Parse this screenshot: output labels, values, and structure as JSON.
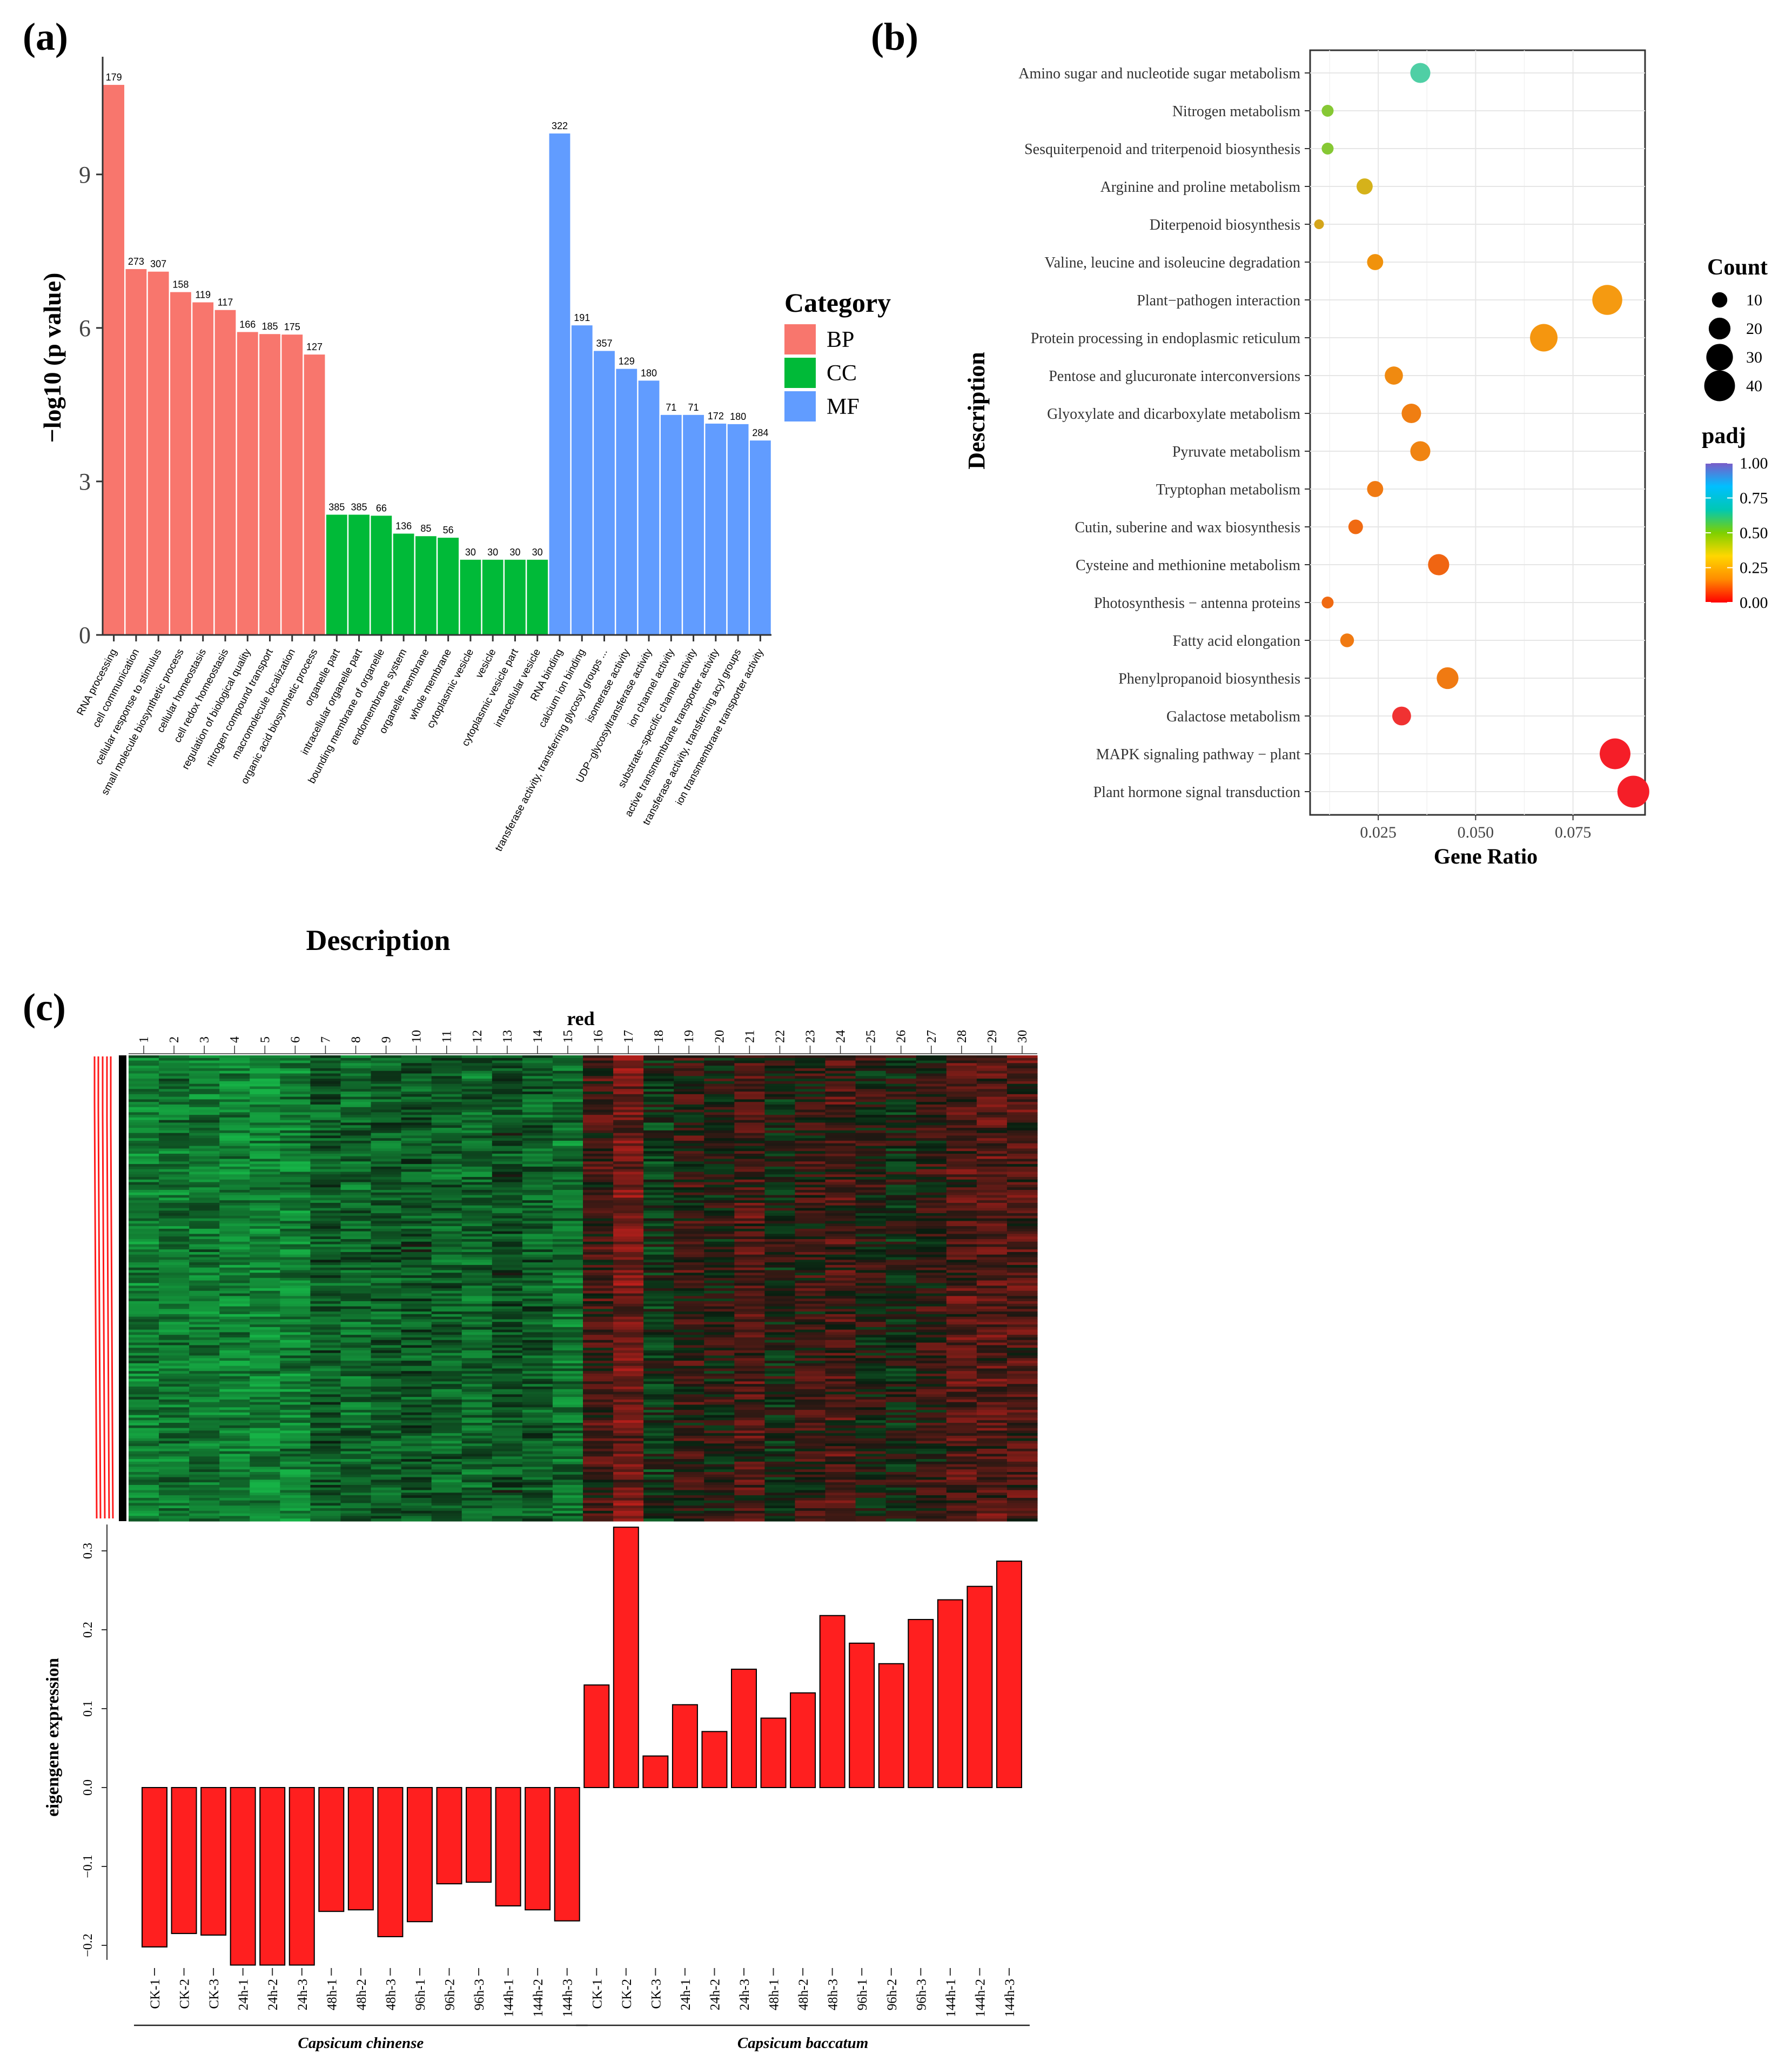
{
  "panel_labels": {
    "a": "(a)",
    "b": "(b)",
    "c": "(c)"
  },
  "chart_data": [
    {
      "panel": "a",
      "type": "bar",
      "xlabel": "Description",
      "ylabel": "−log10 (p value)",
      "ylim": [
        0,
        11.3
      ],
      "yticks": [
        0,
        3,
        6,
        9
      ],
      "legend": {
        "title": "Category",
        "placement": "right",
        "entries": [
          {
            "name": "BP",
            "color": "#F8766D"
          },
          {
            "name": "CC",
            "color": "#00BA38"
          },
          {
            "name": "MF",
            "color": "#619CFF"
          }
        ]
      },
      "bars": [
        {
          "label": "RNA processing",
          "value": 10.75,
          "count": "179",
          "cat": "BP"
        },
        {
          "label": "cell communication",
          "value": 7.15,
          "count": "273",
          "cat": "BP"
        },
        {
          "label": "cellular response to stimulus",
          "value": 7.1,
          "count": "307",
          "cat": "BP"
        },
        {
          "label": "small molecule biosynthetic process",
          "value": 6.7,
          "count": "158",
          "cat": "BP"
        },
        {
          "label": "cellular homeostasis",
          "value": 6.5,
          "count": "119",
          "cat": "BP"
        },
        {
          "label": "cell redox homeostasis",
          "value": 6.35,
          "count": "117",
          "cat": "BP"
        },
        {
          "label": "regulation of biological quality",
          "value": 5.92,
          "count": "166",
          "cat": "BP"
        },
        {
          "label": "nitrogen compound transport",
          "value": 5.88,
          "count": "185",
          "cat": "BP"
        },
        {
          "label": "macromolecule localization",
          "value": 5.87,
          "count": "175",
          "cat": "BP"
        },
        {
          "label": "organic acid biosynthetic process",
          "value": 5.48,
          "count": "127",
          "cat": "BP"
        },
        {
          "label": "organelle part",
          "value": 2.35,
          "count": "385",
          "cat": "CC"
        },
        {
          "label": "intracellular organelle part",
          "value": 2.35,
          "count": "385",
          "cat": "CC"
        },
        {
          "label": "bounding membrane of organelle",
          "value": 2.33,
          "count": "66",
          "cat": "CC"
        },
        {
          "label": "endomembrane system",
          "value": 1.98,
          "count": "136",
          "cat": "CC"
        },
        {
          "label": "organelle membrane",
          "value": 1.93,
          "count": "85",
          "cat": "CC"
        },
        {
          "label": "whole membrane",
          "value": 1.9,
          "count": "56",
          "cat": "CC"
        },
        {
          "label": "cytoplasmic vesicle",
          "value": 1.47,
          "count": "30",
          "cat": "CC"
        },
        {
          "label": "vesicle",
          "value": 1.47,
          "count": "30",
          "cat": "CC"
        },
        {
          "label": "cytoplasmic vesicle part",
          "value": 1.47,
          "count": "30",
          "cat": "CC"
        },
        {
          "label": "intracellular vesicle",
          "value": 1.47,
          "count": "30",
          "cat": "CC"
        },
        {
          "label": "RNA binding",
          "value": 9.8,
          "count": "322",
          "cat": "MF"
        },
        {
          "label": "calcium ion binding",
          "value": 6.05,
          "count": "191",
          "cat": "MF"
        },
        {
          "label": "transferase activity, transferring glycosyl groups ...",
          "value": 5.55,
          "count": "357",
          "cat": "MF"
        },
        {
          "label": "isomerase activity",
          "value": 5.2,
          "count": "129",
          "cat": "MF"
        },
        {
          "label": "UDP−glycosyltransferase activity",
          "value": 4.97,
          "count": "180",
          "cat": "MF"
        },
        {
          "label": "ion channel activity",
          "value": 4.3,
          "count": "71",
          "cat": "MF"
        },
        {
          "label": "substrate−specific channel activity",
          "value": 4.3,
          "count": "71",
          "cat": "MF"
        },
        {
          "label": "active transmembrane transporter activity",
          "value": 4.13,
          "count": "172",
          "cat": "MF"
        },
        {
          "label": "transferase activity, transferring acyl groups",
          "value": 4.12,
          "count": "180",
          "cat": "MF"
        },
        {
          "label": "ion transmembrane transporter activity",
          "value": 3.8,
          "count": "284",
          "cat": "MF"
        }
      ]
    },
    {
      "panel": "b",
      "type": "scatter",
      "xlabel": "Gene Ratio",
      "ylabel": "Description",
      "xlim": [
        0.0075,
        0.0935
      ],
      "xticks": [
        0.025,
        0.05,
        0.075
      ],
      "xtick_labels": [
        "0.025",
        "0.050",
        "0.075"
      ],
      "grid": true,
      "size_legend": {
        "title": "Count",
        "values": [
          10,
          20,
          30,
          40
        ],
        "labels": [
          "10",
          "20",
          "30",
          "40"
        ]
      },
      "color_legend": {
        "title": "padj",
        "range": [
          0,
          1
        ],
        "ticks": [
          0,
          0.25,
          0.5,
          0.75,
          1
        ],
        "tick_labels": [
          "0.00",
          "0.25",
          "0.50",
          "0.75",
          "1.00"
        ],
        "colors": [
          "#FF0000",
          "#FF8C00",
          "#FFD700",
          "#7FD000",
          "#00C8B4",
          "#00BFFF",
          "#7A5CC8"
        ]
      },
      "points": [
        {
          "label": "Amino sugar and nucleotide sugar metabolism",
          "x": 0.0358,
          "count": 17,
          "color": "#4FCFA5"
        },
        {
          "label": "Nitrogen metabolism",
          "x": 0.012,
          "count": 6,
          "color": "#86C834"
        },
        {
          "label": "Sesquiterpenoid and triterpenoid biosynthesis",
          "x": 0.012,
          "count": 6,
          "color": "#86C834"
        },
        {
          "label": "Arginine and proline metabolism",
          "x": 0.0215,
          "count": 11,
          "color": "#D5B21A"
        },
        {
          "label": "Diterpenoid biosynthesis",
          "x": 0.0098,
          "count": 4,
          "color": "#D4A51A"
        },
        {
          "label": "Valine, leucine and isoleucine degradation",
          "x": 0.0242,
          "count": 11,
          "color": "#F0920C"
        },
        {
          "label": "Plant−pathogen interaction",
          "x": 0.0838,
          "count": 38,
          "color": "#F59A11"
        },
        {
          "label": "Protein processing in endoplasmic reticulum",
          "x": 0.0675,
          "count": 32,
          "color": "#F5960F"
        },
        {
          "label": "Pentose and glucuronate interconversions",
          "x": 0.029,
          "count": 14,
          "color": "#F08A10"
        },
        {
          "label": "Glyoxylate and dicarboxylate metabolism",
          "x": 0.0335,
          "count": 16,
          "color": "#F07E12"
        },
        {
          "label": "Pyruvate metabolism",
          "x": 0.0358,
          "count": 17,
          "color": "#F08412"
        },
        {
          "label": "Tryptophan metabolism",
          "x": 0.0242,
          "count": 11,
          "color": "#F07A12"
        },
        {
          "label": "Cutin, suberine and wax biosynthesis",
          "x": 0.0192,
          "count": 9,
          "color": "#F06A12"
        },
        {
          "label": "Cysteine and methionine metabolism",
          "x": 0.0405,
          "count": 19,
          "color": "#F06512"
        },
        {
          "label": "Photosynthesis − antenna proteins",
          "x": 0.012,
          "count": 6,
          "color": "#F06A12"
        },
        {
          "label": "Fatty acid elongation",
          "x": 0.017,
          "count": 8,
          "color": "#F07A12"
        },
        {
          "label": "Phenylpropanoid biosynthesis",
          "x": 0.0428,
          "count": 20,
          "color": "#F07A12"
        },
        {
          "label": "Galactose metabolism",
          "x": 0.031,
          "count": 15,
          "color": "#F03232"
        },
        {
          "label": "MAPK signaling pathway − plant",
          "x": 0.0858,
          "count": 40,
          "color": "#F51E28"
        },
        {
          "label": "Plant hormone signal transduction",
          "x": 0.0905,
          "count": 43,
          "color": "#F51E28"
        }
      ]
    },
    {
      "panel": "c",
      "type": "heatmap",
      "title": "red",
      "columns": [
        "1",
        "2",
        "3",
        "4",
        "5",
        "6",
        "7",
        "8",
        "9",
        "10",
        "11",
        "12",
        "13",
        "14",
        "15",
        "16",
        "17",
        "18",
        "19",
        "20",
        "21",
        "22",
        "23",
        "24",
        "25",
        "26",
        "27",
        "28",
        "29",
        "30"
      ],
      "column_tones": [
        0.62,
        0.58,
        0.6,
        0.68,
        0.72,
        0.66,
        0.4,
        0.5,
        0.42,
        0.36,
        0.44,
        0.5,
        0.34,
        0.42,
        0.56,
        -0.18,
        -0.45,
        0.2,
        -0.12,
        -0.04,
        -0.25,
        0.05,
        -0.12,
        -0.22,
        -0.02,
        0.06,
        -0.1,
        -0.28,
        -0.3,
        -0.3
      ]
    },
    {
      "panel": "c",
      "type": "bar",
      "ylabel": "eigengene expression",
      "ylim": [
        -0.215,
        0.33
      ],
      "yticks": [
        -0.2,
        -0.1,
        0.0,
        0.1,
        0.2,
        0.3
      ],
      "ytick_labels": [
        "−0.2",
        "−0.1",
        "0.0",
        "0.1",
        "0.2",
        "0.3"
      ],
      "bar_color": "#FF1F1F",
      "categories": [
        "CK-1",
        "CK-2",
        "CK-3",
        "24h-1",
        "24h-2",
        "24h-3",
        "48h-1",
        "48h-2",
        "48h-3",
        "96h-1",
        "96h-2",
        "96h-3",
        "144h-1",
        "144h-2",
        "144h-3",
        "CK-1",
        "CK-2",
        "CK-3",
        "24h-1",
        "24h-2",
        "24h-3",
        "48h-1",
        "48h-2",
        "48h-3",
        "96h-1",
        "96h-2",
        "96h-3",
        "144h-1",
        "144h-2",
        "144h-3"
      ],
      "values": [
        -0.202,
        -0.185,
        -0.187,
        -0.225,
        -0.225,
        -0.225,
        -0.157,
        -0.155,
        -0.189,
        -0.17,
        -0.122,
        -0.12,
        -0.15,
        -0.155,
        -0.169,
        0.13,
        0.33,
        0.04,
        0.105,
        0.071,
        0.15,
        0.088,
        0.12,
        0.218,
        0.183,
        0.157,
        0.213,
        0.238,
        0.255,
        0.287
      ],
      "groups": [
        {
          "name": "Capsicum chinense",
          "span": [
            0,
            14
          ]
        },
        {
          "name": "Capsicum baccatum",
          "span": [
            15,
            29
          ]
        }
      ]
    }
  ]
}
